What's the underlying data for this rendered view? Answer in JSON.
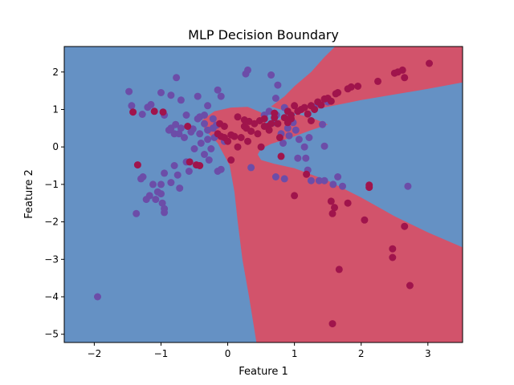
{
  "chart_data": {
    "type": "scatter",
    "title": "MLP Decision Boundary",
    "xlabel": "Feature 1",
    "ylabel": "Feature 2",
    "xlim": [
      -2.45,
      3.52
    ],
    "ylim": [
      -5.22,
      2.68
    ],
    "xticks": [
      -2,
      -1,
      0,
      1,
      2,
      3
    ],
    "yticks": [
      -5,
      -4,
      -3,
      -2,
      -1,
      0,
      1,
      2
    ],
    "grid": false,
    "colors": {
      "class_0": "#6591c4",
      "class_1": "#d2536b",
      "class_0_point": "#6c4da8",
      "class_1_point": "#a0144c",
      "frame": "#000000"
    },
    "decision_regions": [
      {
        "label": "class 1 region",
        "class": 1,
        "polygon": [
          [
            1.61,
            2.68
          ],
          [
            3.52,
            2.68
          ],
          [
            3.52,
            1.72
          ],
          [
            3.0,
            1.55
          ],
          [
            2.0,
            1.25
          ],
          [
            1.3,
            1.0
          ],
          [
            0.88,
            0.78
          ],
          [
            0.55,
            0.62
          ],
          [
            0.3,
            0.45
          ],
          [
            0.15,
            0.33
          ],
          [
            0.25,
            0.28
          ],
          [
            0.55,
            0.33
          ],
          [
            0.62,
            0.4
          ],
          [
            0.5,
            0.92
          ],
          [
            0.3,
            1.07
          ],
          [
            0.05,
            1.05
          ],
          [
            -0.2,
            0.95
          ],
          [
            -0.38,
            0.72
          ],
          [
            -0.35,
            0.47
          ],
          [
            -0.15,
            0.1
          ],
          [
            0.03,
            -0.5
          ],
          [
            0.1,
            -1.2
          ],
          [
            0.15,
            -2.0
          ],
          [
            0.22,
            -3.0
          ],
          [
            0.32,
            -4.0
          ],
          [
            0.43,
            -5.22
          ],
          [
            3.52,
            -5.22
          ],
          [
            3.52,
            -2.68
          ],
          [
            3.0,
            -2.28
          ],
          [
            2.5,
            -1.85
          ],
          [
            2.0,
            -1.35
          ],
          [
            1.5,
            -0.9
          ],
          [
            1.0,
            -0.57
          ],
          [
            0.7,
            -0.45
          ],
          [
            0.5,
            -0.35
          ],
          [
            0.45,
            -0.2
          ],
          [
            0.5,
            -0.05
          ],
          [
            0.65,
            0.08
          ],
          [
            0.95,
            0.25
          ],
          [
            1.25,
            0.45
          ],
          [
            1.5,
            0.6
          ],
          [
            1.3,
            0.75
          ],
          [
            1.0,
            0.9
          ],
          [
            0.75,
            1.02
          ],
          [
            0.65,
            1.08
          ],
          [
            0.85,
            1.35
          ],
          [
            1.0,
            1.62
          ],
          [
            1.25,
            2.0
          ],
          [
            1.45,
            2.4
          ]
        ]
      }
    ],
    "series": [
      {
        "class": 0,
        "points": [
          [
            -1.48,
            1.48
          ],
          [
            -1.44,
            1.1
          ],
          [
            -1.28,
            0.87
          ],
          [
            -1.2,
            1.06
          ],
          [
            -1.15,
            1.13
          ],
          [
            -1.0,
            1.45
          ],
          [
            -0.85,
            1.38
          ],
          [
            -0.77,
            1.85
          ],
          [
            -0.7,
            1.25
          ],
          [
            -0.62,
            0.85
          ],
          [
            -0.45,
            1.35
          ],
          [
            -0.42,
            0.8
          ],
          [
            -0.42,
            0.35
          ],
          [
            -0.3,
            1.1
          ],
          [
            -0.35,
            0.62
          ],
          [
            -0.22,
            0.5
          ],
          [
            -0.3,
            0.2
          ],
          [
            -0.22,
            0.75
          ],
          [
            -0.17,
            0.58
          ],
          [
            -0.15,
            1.52
          ],
          [
            -0.1,
            1.35
          ],
          [
            0.27,
            1.95
          ],
          [
            0.3,
            2.05
          ],
          [
            0.65,
            1.92
          ],
          [
            0.75,
            1.65
          ],
          [
            0.62,
            0.95
          ],
          [
            0.73,
            0.85
          ],
          [
            0.85,
            1.05
          ],
          [
            0.9,
            0.5
          ],
          [
            0.92,
            0.3
          ],
          [
            1.02,
            0.45
          ],
          [
            1.07,
            0.2
          ],
          [
            1.05,
            -0.3
          ],
          [
            1.15,
            0.0
          ],
          [
            1.17,
            -0.3
          ],
          [
            1.2,
            -0.62
          ],
          [
            1.25,
            -0.9
          ],
          [
            1.37,
            -0.9
          ],
          [
            1.42,
            0.6
          ],
          [
            1.5,
            1.2
          ],
          [
            1.45,
            -0.9
          ],
          [
            1.58,
            -1.0
          ],
          [
            1.65,
            -0.8
          ],
          [
            1.72,
            -1.05
          ],
          [
            1.45,
            0.02
          ],
          [
            0.72,
            1.3
          ],
          [
            0.72,
            -0.8
          ],
          [
            0.85,
            -0.85
          ],
          [
            0.35,
            -0.55
          ],
          [
            0.8,
            0.35
          ],
          [
            0.7,
            0.65
          ],
          [
            0.55,
            0.85
          ],
          [
            -0.95,
            0.85
          ],
          [
            -0.85,
            0.5
          ],
          [
            -0.8,
            0.35
          ],
          [
            -0.78,
            0.6
          ],
          [
            -0.73,
            0.35
          ],
          [
            -0.65,
            0.25
          ],
          [
            -0.55,
            0.4
          ],
          [
            -0.52,
            0.48
          ],
          [
            -0.5,
            -0.05
          ],
          [
            -0.45,
            0.75
          ],
          [
            -0.4,
            0.1
          ],
          [
            -0.35,
            -0.2
          ],
          [
            -0.28,
            -0.35
          ],
          [
            -0.25,
            -0.05
          ],
          [
            -0.2,
            0.25
          ],
          [
            -0.15,
            -0.65
          ],
          [
            -0.1,
            -0.6
          ],
          [
            -0.05,
            0.15
          ],
          [
            -0.62,
            -0.4
          ],
          [
            -0.58,
            -0.65
          ],
          [
            -0.75,
            -0.75
          ],
          [
            -0.8,
            -0.5
          ],
          [
            -0.85,
            -0.95
          ],
          [
            -0.95,
            -0.7
          ],
          [
            -1.0,
            -1.0
          ],
          [
            -1.05,
            -1.2
          ],
          [
            -1.08,
            -1.4
          ],
          [
            -1.12,
            -1.0
          ],
          [
            -1.17,
            -1.3
          ],
          [
            -1.22,
            -1.4
          ],
          [
            -1.27,
            -0.8
          ],
          [
            -1.3,
            -0.85
          ],
          [
            -1.37,
            -1.78
          ],
          [
            -0.95,
            -1.65
          ],
          [
            -0.95,
            -1.75
          ],
          [
            -0.98,
            -1.5
          ],
          [
            -1.0,
            -1.25
          ],
          [
            -0.72,
            -1.1
          ],
          [
            -1.95,
            -4.0
          ],
          [
            -0.88,
            0.45
          ],
          [
            -0.7,
            0.5
          ],
          [
            2.7,
            -1.05
          ],
          [
            1.35,
            1.15
          ],
          [
            0.98,
            0.65
          ],
          [
            -0.35,
            0.85
          ],
          [
            -0.3,
            0.45
          ],
          [
            0.83,
            0.1
          ],
          [
            1.22,
            0.25
          ]
        ]
      },
      {
        "class": 1,
        "points": [
          [
            -1.42,
            0.93
          ],
          [
            -1.35,
            -0.48
          ],
          [
            -0.97,
            0.93
          ],
          [
            -0.6,
            0.55
          ],
          [
            -0.57,
            -0.4
          ],
          [
            -0.47,
            -0.48
          ],
          [
            -0.12,
            0.62
          ],
          [
            -0.15,
            0.35
          ],
          [
            -0.1,
            0.28
          ],
          [
            -0.05,
            0.25
          ],
          [
            0.0,
            0.15
          ],
          [
            0.05,
            -0.35
          ],
          [
            0.1,
            0.28
          ],
          [
            0.15,
            0.8
          ],
          [
            0.2,
            0.25
          ],
          [
            0.25,
            0.55
          ],
          [
            0.28,
            0.5
          ],
          [
            0.32,
            0.68
          ],
          [
            0.35,
            0.42
          ],
          [
            0.4,
            0.62
          ],
          [
            0.45,
            0.35
          ],
          [
            0.48,
            0.7
          ],
          [
            0.55,
            0.75
          ],
          [
            0.6,
            0.55
          ],
          [
            0.62,
            0.45
          ],
          [
            0.7,
            0.9
          ],
          [
            0.75,
            0.62
          ],
          [
            0.78,
            0.25
          ],
          [
            0.8,
            -0.25
          ],
          [
            0.85,
            0.78
          ],
          [
            0.9,
            0.95
          ],
          [
            0.95,
            0.75
          ],
          [
            1.0,
            1.1
          ],
          [
            1.05,
            0.95
          ],
          [
            1.1,
            1.0
          ],
          [
            1.15,
            1.05
          ],
          [
            1.2,
            0.88
          ],
          [
            1.25,
            1.1
          ],
          [
            1.3,
            1.0
          ],
          [
            1.35,
            1.2
          ],
          [
            1.4,
            1.12
          ],
          [
            1.45,
            1.28
          ],
          [
            1.5,
            1.3
          ],
          [
            1.55,
            1.22
          ],
          [
            1.62,
            1.42
          ],
          [
            1.8,
            1.55
          ],
          [
            1.85,
            1.6
          ],
          [
            1.95,
            1.62
          ],
          [
            2.25,
            1.75
          ],
          [
            2.5,
            1.97
          ],
          [
            2.55,
            2.0
          ],
          [
            2.62,
            2.05
          ],
          [
            2.65,
            1.85
          ],
          [
            3.02,
            2.23
          ],
          [
            -0.42,
            -0.5
          ],
          [
            0.15,
            0.0
          ],
          [
            0.3,
            0.15
          ],
          [
            0.5,
            0.0
          ],
          [
            1.0,
            -1.3
          ],
          [
            1.18,
            -0.73
          ],
          [
            1.55,
            -1.45
          ],
          [
            1.6,
            -1.62
          ],
          [
            1.57,
            -1.78
          ],
          [
            1.8,
            -1.5
          ],
          [
            2.05,
            -1.95
          ],
          [
            2.12,
            -1.02
          ],
          [
            2.12,
            -1.08
          ],
          [
            2.47,
            -2.72
          ],
          [
            2.47,
            -2.95
          ],
          [
            2.65,
            -2.12
          ],
          [
            2.73,
            -3.7
          ],
          [
            1.67,
            -3.27
          ],
          [
            1.57,
            -4.72
          ],
          [
            0.05,
            0.32
          ],
          [
            0.7,
            0.78
          ],
          [
            -0.05,
            0.55
          ],
          [
            0.25,
            0.72
          ],
          [
            0.9,
            0.65
          ],
          [
            1.25,
            0.7
          ],
          [
            0.55,
            0.55
          ],
          [
            -1.1,
            0.95
          ],
          [
            0.65,
            0.62
          ],
          [
            0.95,
            0.85
          ],
          [
            1.65,
            1.45
          ]
        ]
      }
    ]
  }
}
